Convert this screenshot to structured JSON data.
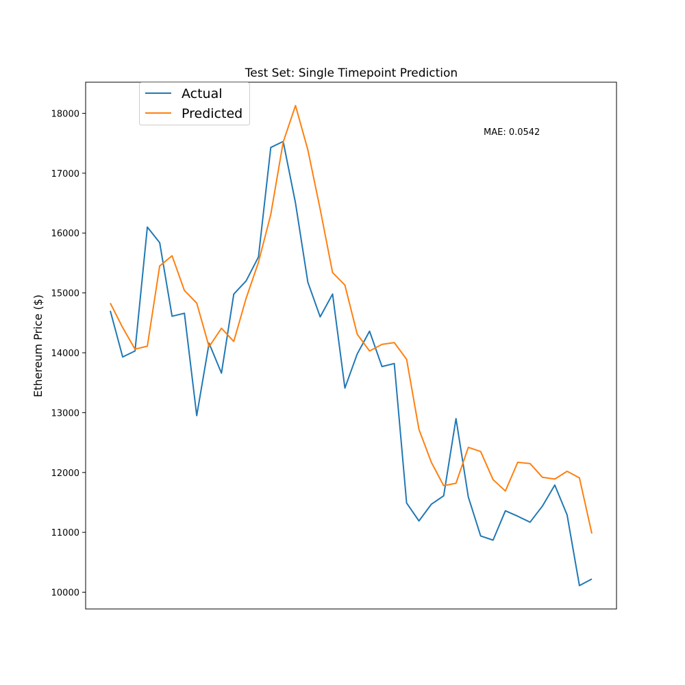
{
  "chart_data": {
    "type": "line",
    "title": "Test Set: Single Timepoint Prediction",
    "xlabel": "",
    "ylabel": "Ethereum Price ($)",
    "ylim": [
      9720,
      18520
    ],
    "xlim": [
      -2,
      41
    ],
    "y_ticks": [
      10000,
      11000,
      12000,
      13000,
      14000,
      15000,
      16000,
      17000,
      18000
    ],
    "y_tick_labels": [
      "10000",
      "11000",
      "12000",
      "13000",
      "14000",
      "15000",
      "16000",
      "17000",
      "18000"
    ],
    "x_ticks_visible": false,
    "grid": false,
    "legend_placement": "top-left",
    "annotation": "MAE: 0.0542",
    "x": [
      0,
      1,
      2,
      3,
      4,
      5,
      6,
      7,
      8,
      9,
      10,
      11,
      12,
      13,
      14,
      15,
      16,
      17,
      18,
      19,
      20,
      21,
      22,
      23,
      24,
      25,
      26,
      27,
      28,
      29,
      30,
      31,
      32,
      33,
      34,
      35,
      36,
      37,
      38,
      39
    ],
    "series": [
      {
        "name": "Actual",
        "color": "#1f77b4",
        "values": [
          14700,
          13930,
          14030,
          16100,
          15840,
          14610,
          14660,
          12950,
          14160,
          13660,
          14980,
          15200,
          15600,
          17430,
          17530,
          16500,
          15180,
          14600,
          14980,
          13410,
          13980,
          14360,
          13770,
          13820,
          11490,
          11190,
          11470,
          11610,
          12900,
          11590,
          10940,
          10870,
          11360,
          11270,
          11170,
          11440,
          11790,
          11290,
          10110,
          10220
        ]
      },
      {
        "name": "Predicted",
        "color": "#ff7f0e",
        "values": [
          14830,
          14420,
          14060,
          14110,
          15450,
          15620,
          15040,
          14830,
          14100,
          14410,
          14190,
          14910,
          15510,
          16310,
          17520,
          18130,
          17390,
          16400,
          15340,
          15130,
          14310,
          14030,
          14140,
          14170,
          13890,
          12720,
          12170,
          11780,
          11820,
          12420,
          12350,
          11880,
          11690,
          12170,
          12150,
          11920,
          11890,
          12020,
          11910,
          10980
        ]
      }
    ]
  }
}
